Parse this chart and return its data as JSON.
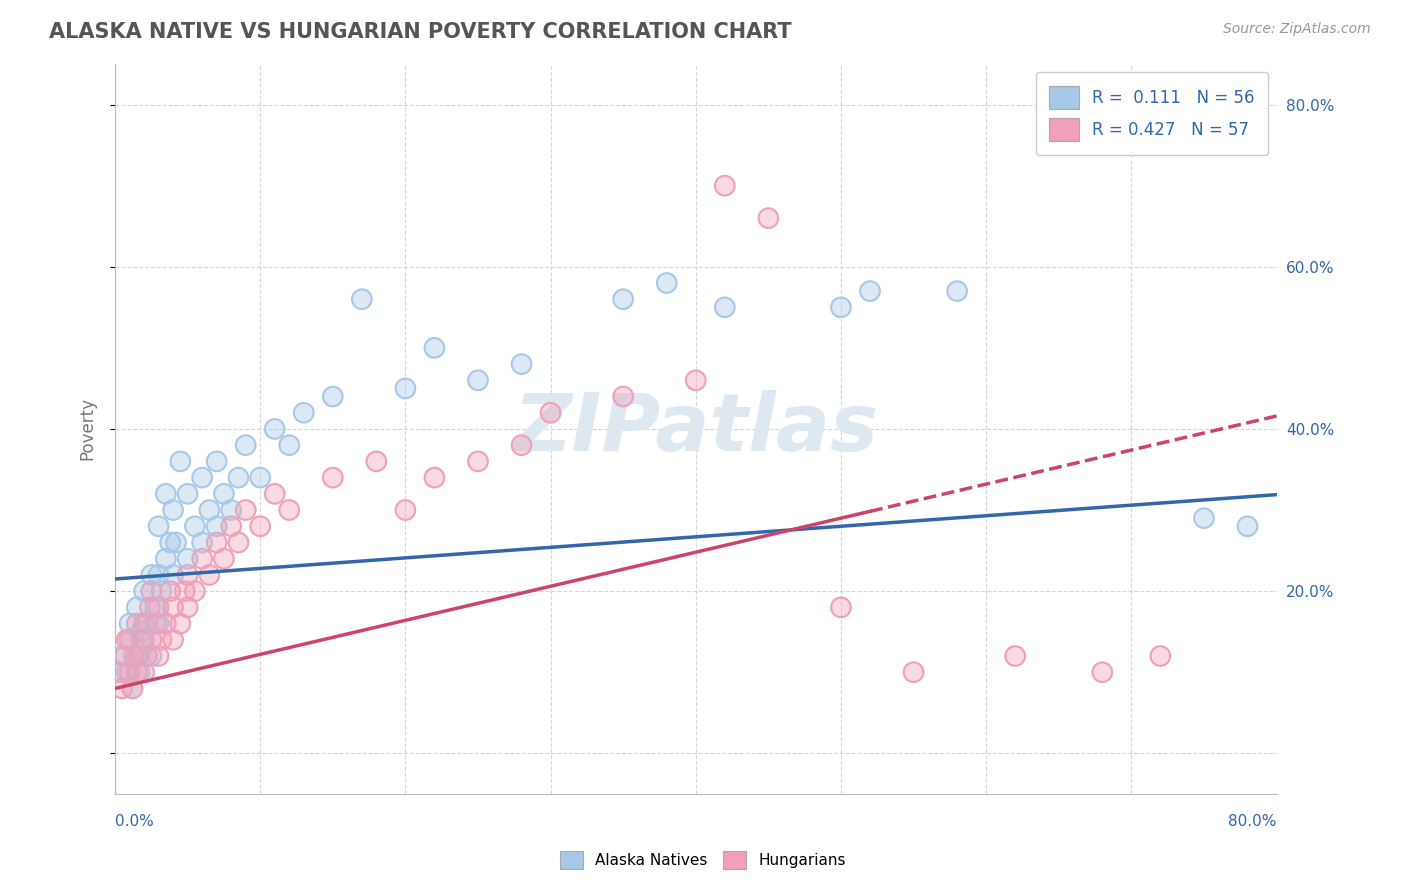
{
  "title": "ALASKA NATIVE VS HUNGARIAN POVERTY CORRELATION CHART",
  "source": "Source: ZipAtlas.com",
  "ylabel": "Poverty",
  "xlim": [
    0.0,
    0.8
  ],
  "ylim": [
    -0.05,
    0.85
  ],
  "blue_color": "#A8C8E8",
  "pink_color": "#F0A0B8",
  "blue_line_color": "#3366AA",
  "pink_line_color": "#CC4466",
  "legend_R1": "0.111",
  "legend_N1": "56",
  "legend_R2": "0.427",
  "legend_N2": "57",
  "watermark": "ZIPatlas",
  "blue_intercept": 0.215,
  "blue_slope": 0.13,
  "pink_intercept": 0.08,
  "pink_slope": 0.42,
  "background_color": "#FFFFFF",
  "grid_color": "#CCCCCC",
  "blue_x": [
    0.005,
    0.008,
    0.01,
    0.01,
    0.012,
    0.015,
    0.015,
    0.017,
    0.018,
    0.02,
    0.02,
    0.022,
    0.025,
    0.025,
    0.028,
    0.03,
    0.03,
    0.03,
    0.032,
    0.035,
    0.035,
    0.038,
    0.04,
    0.04,
    0.042,
    0.045,
    0.05,
    0.05,
    0.055,
    0.06,
    0.06,
    0.065,
    0.07,
    0.07,
    0.075,
    0.08,
    0.085,
    0.09,
    0.1,
    0.11,
    0.12,
    0.13,
    0.15,
    0.17,
    0.2,
    0.22,
    0.25,
    0.28,
    0.35,
    0.38,
    0.42,
    0.5,
    0.52,
    0.58,
    0.75,
    0.78
  ],
  "blue_y": [
    0.12,
    0.1,
    0.14,
    0.16,
    0.08,
    0.12,
    0.18,
    0.1,
    0.15,
    0.14,
    0.2,
    0.16,
    0.12,
    0.22,
    0.18,
    0.16,
    0.22,
    0.28,
    0.2,
    0.24,
    0.32,
    0.26,
    0.22,
    0.3,
    0.26,
    0.36,
    0.24,
    0.32,
    0.28,
    0.26,
    0.34,
    0.3,
    0.28,
    0.36,
    0.32,
    0.3,
    0.34,
    0.38,
    0.34,
    0.4,
    0.38,
    0.42,
    0.44,
    0.56,
    0.45,
    0.5,
    0.46,
    0.48,
    0.56,
    0.58,
    0.55,
    0.55,
    0.57,
    0.57,
    0.29,
    0.28
  ],
  "pink_x": [
    0.003,
    0.005,
    0.007,
    0.008,
    0.01,
    0.01,
    0.012,
    0.013,
    0.015,
    0.015,
    0.016,
    0.018,
    0.02,
    0.02,
    0.022,
    0.024,
    0.025,
    0.025,
    0.028,
    0.03,
    0.03,
    0.032,
    0.035,
    0.038,
    0.04,
    0.04,
    0.045,
    0.048,
    0.05,
    0.05,
    0.055,
    0.06,
    0.065,
    0.07,
    0.075,
    0.08,
    0.085,
    0.09,
    0.1,
    0.11,
    0.12,
    0.15,
    0.18,
    0.2,
    0.22,
    0.25,
    0.28,
    0.3,
    0.35,
    0.4,
    0.42,
    0.45,
    0.5,
    0.55,
    0.62,
    0.68,
    0.72
  ],
  "pink_y": [
    0.1,
    0.08,
    0.12,
    0.14,
    0.1,
    0.14,
    0.08,
    0.12,
    0.1,
    0.16,
    0.12,
    0.14,
    0.1,
    0.16,
    0.12,
    0.18,
    0.14,
    0.2,
    0.16,
    0.12,
    0.18,
    0.14,
    0.16,
    0.2,
    0.14,
    0.18,
    0.16,
    0.2,
    0.18,
    0.22,
    0.2,
    0.24,
    0.22,
    0.26,
    0.24,
    0.28,
    0.26,
    0.3,
    0.28,
    0.32,
    0.3,
    0.34,
    0.36,
    0.3,
    0.34,
    0.36,
    0.38,
    0.42,
    0.44,
    0.46,
    0.7,
    0.66,
    0.18,
    0.1,
    0.12,
    0.1,
    0.12
  ]
}
